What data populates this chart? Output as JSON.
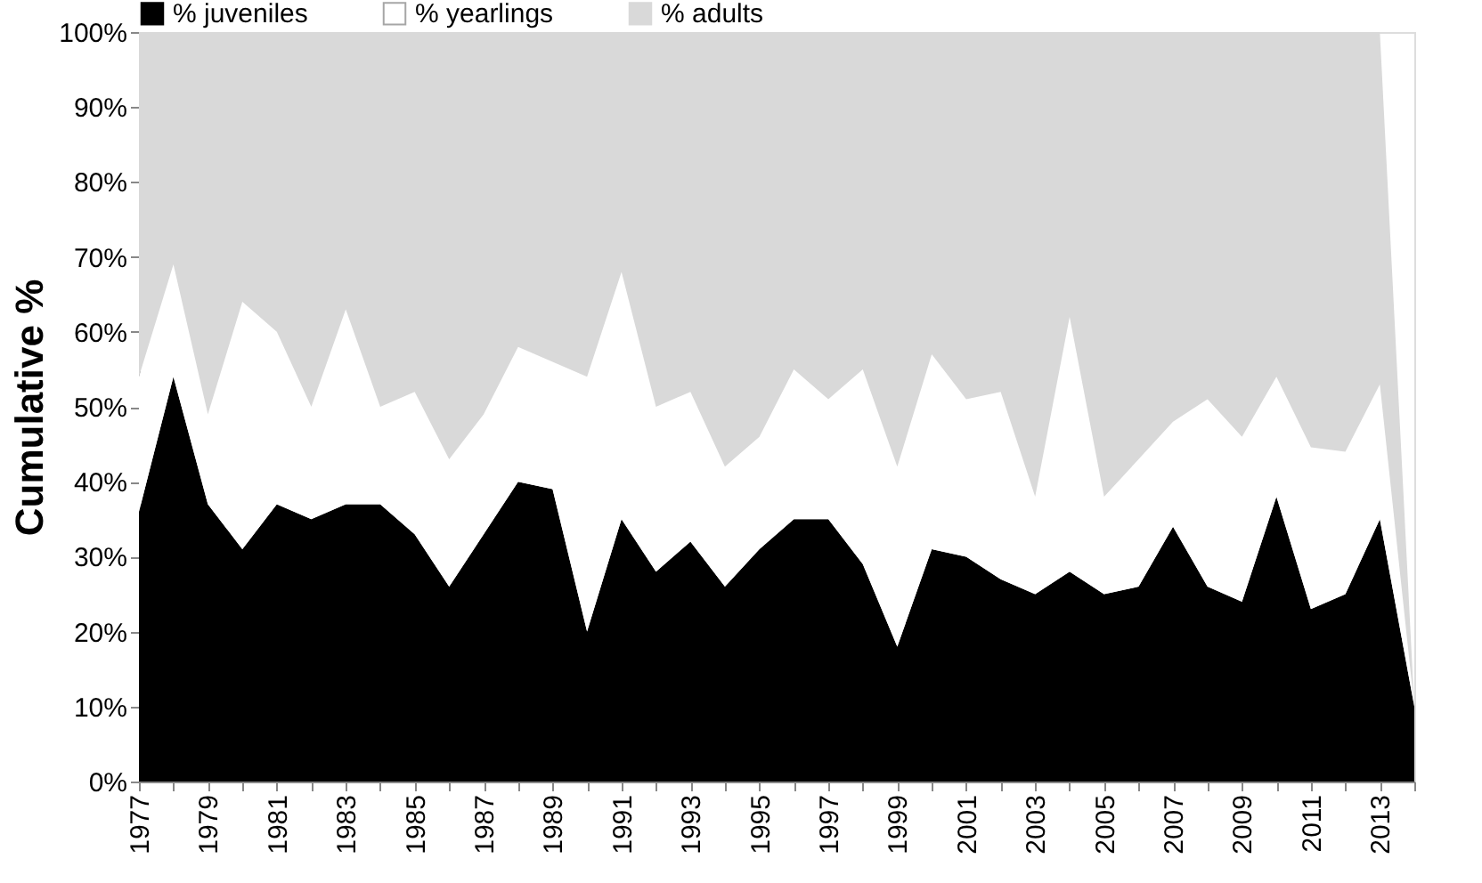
{
  "chart_data": {
    "type": "area",
    "stacked": true,
    "ylabel": "Cumulative %",
    "legend": "top",
    "categories": [
      "1977",
      null,
      "1979",
      null,
      "1981",
      null,
      "1983",
      null,
      "1985",
      null,
      "1987",
      null,
      "1989",
      null,
      "1991",
      null,
      "1993",
      null,
      "1995",
      null,
      "1997",
      null,
      "1999",
      null,
      "2001",
      null,
      "2003",
      null,
      "2005",
      null,
      "2007",
      null,
      "2009",
      null,
      "2011",
      null,
      "2013",
      null
    ],
    "series": [
      {
        "name": "% juveniles",
        "color": "#000000",
        "values": [
          36,
          54,
          37,
          31,
          37,
          35,
          37,
          37,
          33,
          26,
          33,
          40,
          39,
          20,
          35,
          28,
          32,
          26,
          31,
          35,
          35,
          29,
          18,
          31,
          30,
          27,
          25,
          28,
          25,
          26,
          34,
          26,
          24,
          38,
          23,
          25,
          35,
          10
        ]
      },
      {
        "name": "% yearlings",
        "color": "#ffffff",
        "values": [
          18,
          15,
          12,
          33,
          23,
          15,
          26,
          13,
          19,
          17,
          16,
          18,
          17,
          34,
          33,
          22,
          20,
          16,
          15,
          20,
          16,
          26,
          24,
          26,
          21,
          25,
          13,
          34,
          13,
          17,
          14,
          25,
          22,
          16,
          21.6,
          19,
          18,
          0
        ]
      },
      {
        "name": "% adults",
        "color": "#d9d9d9",
        "values": [
          46,
          31,
          51,
          36,
          40,
          50,
          37,
          50,
          48,
          57,
          51,
          42,
          44,
          46,
          32,
          50,
          48,
          58,
          54,
          45,
          49,
          45,
          58,
          43,
          49,
          48,
          62,
          38,
          62,
          57,
          52,
          49,
          54,
          46,
          55.4,
          56,
          47,
          0
        ]
      }
    ],
    "ylim": [
      0,
      100
    ],
    "yticks": [
      {
        "value": 0,
        "label": "0%"
      },
      {
        "value": 10,
        "label": "10%"
      },
      {
        "value": 20,
        "label": "20%"
      },
      {
        "value": 30,
        "label": "30%"
      },
      {
        "value": 40,
        "label": "40%"
      },
      {
        "value": 50,
        "label": "50%"
      },
      {
        "value": 60,
        "label": "60%"
      },
      {
        "value": 70,
        "label": "70%"
      },
      {
        "value": 80,
        "label": "80%"
      },
      {
        "value": 90,
        "label": "90%"
      },
      {
        "value": 100,
        "label": "100%"
      }
    ],
    "grid": false
  }
}
